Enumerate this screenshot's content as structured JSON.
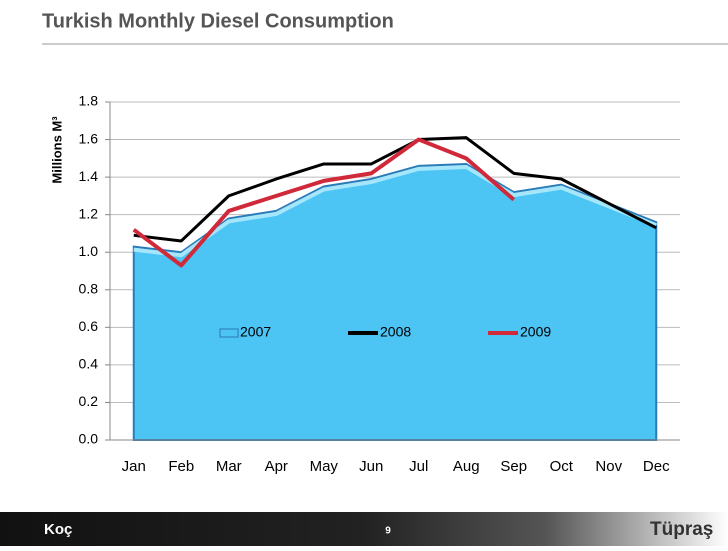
{
  "chart_data": {
    "type": "line",
    "title": "Turkish Monthly Diesel Consumption",
    "y_label": "Millions M³",
    "categories": [
      "Jan",
      "Feb",
      "Mar",
      "Apr",
      "May",
      "Jun",
      "Jul",
      "Aug",
      "Sep",
      "Oct",
      "Nov",
      "Dec"
    ],
    "series": [
      {
        "name": "2007",
        "color": "#4cc4f4",
        "style": "area",
        "values": [
          1.03,
          1.0,
          1.18,
          1.22,
          1.35,
          1.39,
          1.46,
          1.47,
          1.32,
          1.36,
          1.26,
          1.16
        ]
      },
      {
        "name": "2008",
        "color": "#000000",
        "style": "line",
        "values": [
          1.09,
          1.06,
          1.3,
          1.39,
          1.47,
          1.47,
          1.6,
          1.61,
          1.42,
          1.39,
          1.26,
          1.13
        ]
      },
      {
        "name": "2009",
        "color": "#d0293a",
        "style": "line",
        "values": [
          1.12,
          0.93,
          1.22,
          1.3,
          1.38,
          1.42,
          1.6,
          1.5,
          1.28,
          null,
          null,
          null
        ]
      }
    ],
    "ylim": [
      0,
      1.8
    ],
    "yticks": [
      {
        "value": 0,
        "label": "0.0"
      },
      0.2,
      0.4,
      0.6,
      0.8,
      {
        "value": 1,
        "label": "1.0"
      },
      1.2,
      1.4,
      1.6,
      1.8
    ],
    "grid": true,
    "legend": "center"
  },
  "footer": {
    "left_logo": "Koç",
    "page": "9",
    "right_logo": "Tüpraş"
  }
}
